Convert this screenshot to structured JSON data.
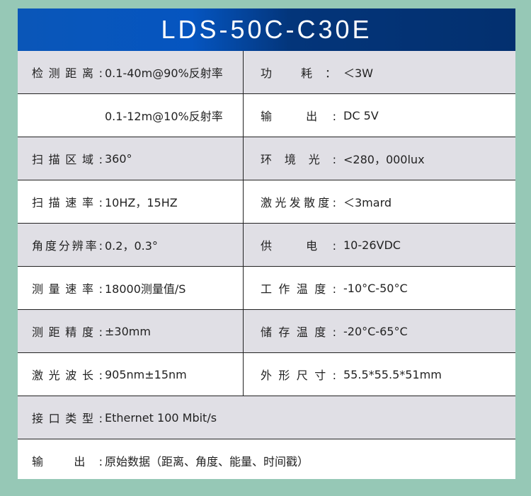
{
  "title": "LDS-50C-C30E",
  "rows": [
    {
      "left": {
        "label": "检测距离:",
        "value": "0.1-40m@90%反射率"
      },
      "right": {
        "label": "功 耗：",
        "value": "＜3W"
      }
    },
    {
      "left": {
        "label": "",
        "value": "0.1-12m@10%反射率"
      },
      "right": {
        "label": "输 出:",
        "value": "DC 5V"
      }
    },
    {
      "left": {
        "label": "扫描区域:",
        "value": "360°"
      },
      "right": {
        "label": "环 境 光 :",
        "value": "<280，000lux"
      }
    },
    {
      "left": {
        "label": "扫描速率:",
        "value": "10HZ，15HZ"
      },
      "right": {
        "label": "激光发散度:",
        "value": "＜3mard"
      }
    },
    {
      "left": {
        "label": "角度分辨率:",
        "value": "0.2，0.3°"
      },
      "right": {
        "label": "供 电:",
        "value": "10-26VDC"
      }
    },
    {
      "left": {
        "label": "测量速率:",
        "value": "18000测量值/S"
      },
      "right": {
        "label": "工作温度:",
        "value": "-10°C-50°C"
      }
    },
    {
      "left": {
        "label": "测距精度:",
        "value": "±30mm"
      },
      "right": {
        "label": "储存温度:",
        "value": "-20°C-65°C"
      }
    },
    {
      "left": {
        "label": "激光波长:",
        "value": "905nm±15nm"
      },
      "right": {
        "label": "外形尺寸:",
        "value": "55.5*55.5*51mm"
      }
    }
  ],
  "full_rows": [
    {
      "label": "接口类型:",
      "value": "Ethernet 100 Mbit/s"
    },
    {
      "label": "输 出:",
      "value": "原始数据（距离、角度、能量、时间戳）"
    }
  ]
}
